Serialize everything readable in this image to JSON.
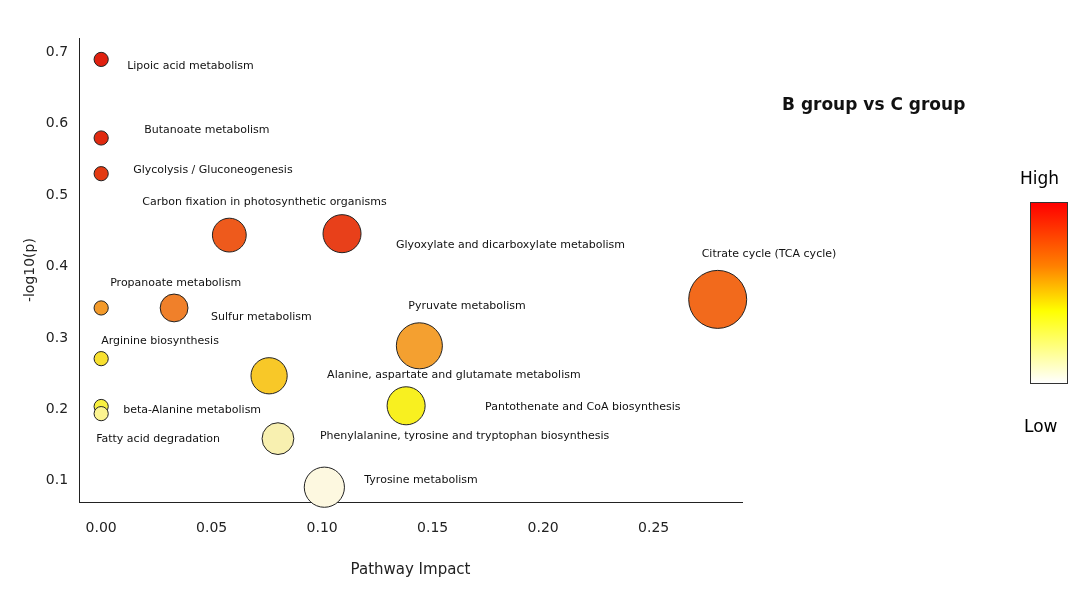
{
  "chart_data": {
    "type": "bubble",
    "title": "B group vs C group",
    "xlabel": "Pathway Impact",
    "ylabel": "-log10(p)",
    "x": [
      0,
      0,
      0,
      0.058,
      0.109,
      0.279,
      0,
      0.033,
      0.144,
      0,
      0.076,
      0.138,
      0,
      0,
      0.08,
      0.101
    ],
    "values": [
      0.69,
      0.58,
      0.53,
      0.444,
      0.446,
      0.354,
      0.342,
      0.342,
      0.289,
      0.271,
      0.247,
      0.205,
      0.204,
      0.194,
      0.159,
      0.091
    ],
    "sizes": [
      0.06,
      0.06,
      0.06,
      0.34,
      0.43,
      1,
      0.06,
      0.23,
      0.63,
      0.06,
      0.39,
      0.43,
      0.06,
      0.06,
      0.3,
      0.48
    ],
    "colors": [
      "#e0200f",
      "#e02a10",
      "#e33a12",
      "#ee5a1c",
      "#e8401a",
      "#f26a1c",
      "#f39a2a",
      "#f0802a",
      "#f4a030",
      "#f8e030",
      "#f8c828",
      "#f8f020",
      "#f8f040",
      "#fcf490",
      "#f8f0b0",
      "#fdf8e0"
    ],
    "xlim": [
      -0.01,
      0.29
    ],
    "ylim": [
      0.07,
      0.72
    ],
    "xticks": [
      {
        "value": 0,
        "label": "0.00"
      },
      {
        "value": 0.05,
        "label": "0.05"
      },
      {
        "value": 0.1,
        "label": "0.10"
      },
      {
        "value": 0.15,
        "label": "0.15"
      },
      {
        "value": 0.2,
        "label": "0.20"
      },
      {
        "value": 0.25,
        "label": "0.25"
      }
    ],
    "yticks": [
      0.1,
      0.2,
      0.3,
      0.4,
      0.5,
      0.6,
      0.7
    ],
    "grid": false,
    "legend": false,
    "annotations": [
      "Lipoic acid metabolism",
      "Butanoate metabolism",
      "Glycolysis / Gluconeogenesis",
      "Carbon fixation in photosynthetic organisms",
      "Glyoxylate and dicarboxylate metabolism",
      "Citrate cycle (TCA cycle)",
      "Propanoate metabolism",
      "Sulfur metabolism",
      "Pyruvate metabolism",
      "Arginine biosynthesis",
      "Alanine, aspartate and glutamate metabolism",
      "Pantothenate and CoA biosynthesis",
      "beta-Alanine metabolism",
      "Fatty acid degradation",
      "Phenylalanine, tyrosine and tryptophan biosynthesis",
      "Tyrosine metabolism",
      "High",
      "Low"
    ]
  }
}
